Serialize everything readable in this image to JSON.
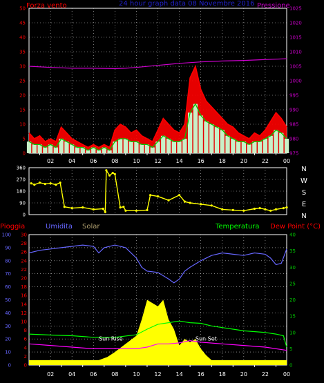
{
  "header": {
    "left_label": "Forza vento",
    "title": "24 hour graph data  08 Novembre 2016",
    "right_label": "Pressione"
  },
  "colors": {
    "background": "#000000",
    "wind_gust": "#ff0000",
    "wind_avg": "#00cc00",
    "wind_speed": "#ffffff",
    "wind_fill": "#c8f0c8",
    "pressure": "#cc00cc",
    "direction": "#ffff00",
    "humidity": "#6666ff",
    "temperature": "#00ff00",
    "dewpoint": "#ff00ff",
    "solar": "#ffff00",
    "rain": "#ff0000",
    "title": "#2222cc",
    "axis_left": "#ff0000",
    "axis_right": "#cc00cc",
    "axis_dir": "#ffffff",
    "axis_hum": "#6666ff",
    "axis_temp": "#00cc00",
    "axis_rain": "#ff0000"
  },
  "chart_data": [
    {
      "type": "line",
      "title": "24 hour graph data  08 Novembre 2016",
      "left_axis": "Forza vento",
      "right_axis": "Pressione",
      "x_ticks": [
        "02",
        "04",
        "06",
        "08",
        "10",
        "12",
        "14",
        "16",
        "18",
        "20",
        "22",
        "00"
      ],
      "x_range": [
        0,
        24
      ],
      "y_left_ticks": [
        0,
        5,
        10,
        15,
        20,
        25,
        30,
        35,
        40,
        45,
        50
      ],
      "y_left_range": [
        0,
        50
      ],
      "y_right_ticks": [
        975,
        980,
        985,
        990,
        995,
        1000,
        1005,
        1010,
        1015,
        1020,
        1025
      ],
      "y_right_range": [
        975,
        1025
      ],
      "grid": true,
      "series": [
        {
          "axis": "left",
          "x": [
            0,
            0.5,
            1,
            1.5,
            2,
            2.5,
            3,
            3.5,
            4,
            4.5,
            5,
            5.5,
            6,
            6.5,
            7,
            7.5,
            8,
            8.5,
            9,
            9.5,
            10,
            10.5,
            11,
            11.5,
            12,
            12.5,
            13,
            13.5,
            14,
            14.5,
            15,
            15.5,
            16,
            16.5,
            17,
            17.5,
            18,
            18.5,
            19,
            19.5,
            20,
            20.5,
            21,
            21.5,
            22,
            22.5,
            23,
            23.5,
            24
          ],
          "values": [
            7,
            5,
            6,
            4,
            5,
            4,
            9,
            7,
            5,
            4,
            3,
            2,
            3,
            2,
            3,
            2,
            8,
            10,
            9,
            7,
            8,
            6,
            5,
            4,
            8,
            12,
            10,
            8,
            7,
            10,
            26,
            30,
            22,
            18,
            16,
            14,
            12,
            10,
            9,
            7,
            6,
            5,
            7,
            6,
            8,
            11,
            14,
            12,
            9
          ]
        },
        {
          "axis": "left",
          "x": [
            0,
            0.5,
            1,
            1.5,
            2,
            2.5,
            3,
            3.5,
            4,
            4.5,
            5,
            5.5,
            6,
            6.5,
            7,
            7.5,
            8,
            8.5,
            9,
            9.5,
            10,
            10.5,
            11,
            11.5,
            12,
            12.5,
            13,
            13.5,
            14,
            14.5,
            15,
            15.5,
            16,
            16.5,
            17,
            17.5,
            18,
            18.5,
            19,
            19.5,
            20,
            20.5,
            21,
            21.5,
            22,
            22.5,
            23,
            23.5,
            24
          ],
          "values": [
            4,
            3,
            3,
            2,
            3,
            2,
            5,
            4,
            3,
            2,
            2,
            1,
            2,
            1,
            2,
            1,
            4,
            5,
            5,
            4,
            4,
            3,
            3,
            2,
            4,
            6,
            5,
            4,
            4,
            5,
            14,
            17,
            13,
            11,
            10,
            9,
            8,
            6,
            5,
            4,
            4,
            3,
            4,
            4,
            5,
            6,
            8,
            7,
            5
          ]
        },
        {
          "axis": "right",
          "x": [
            0,
            2,
            4,
            6,
            8,
            9,
            10,
            12,
            14,
            16,
            18,
            20,
            22,
            24
          ],
          "values": [
            1005.0,
            1004.6,
            1004.3,
            1004.3,
            1004.2,
            1004.3,
            1004.6,
            1005.3,
            1006.0,
            1006.5,
            1006.8,
            1007.0,
            1007.3,
            1007.6
          ]
        }
      ]
    },
    {
      "type": "scatter",
      "right_axis_labels": [
        "N",
        "W",
        "S",
        "E",
        "N"
      ],
      "x_range": [
        0,
        24
      ],
      "y_ticks": [
        0,
        90,
        180,
        270,
        360
      ],
      "y_range": [
        0,
        360
      ],
      "series": [
        {
          "x": [
            0.2,
            0.5,
            1,
            1.5,
            2,
            2.5,
            2.9,
            3.3,
            4,
            5,
            6,
            6.9,
            7.1,
            7.2,
            7.5,
            7.8,
            8,
            8.5,
            8.8,
            9,
            10,
            11,
            11.3,
            12,
            13,
            14,
            14.5,
            15,
            16,
            17,
            18,
            19,
            20,
            21,
            21.5,
            22,
            22.5,
            23,
            23.7,
            24
          ],
          "values": [
            240,
            230,
            245,
            235,
            240,
            230,
            245,
            60,
            50,
            55,
            40,
            45,
            20,
            340,
            300,
            320,
            310,
            55,
            60,
            30,
            30,
            35,
            150,
            140,
            110,
            150,
            100,
            90,
            80,
            70,
            40,
            35,
            30,
            45,
            50,
            40,
            30,
            40,
            50,
            55
          ]
        }
      ]
    },
    {
      "type": "line",
      "legend": [
        "Pioggia",
        "Umidita",
        "Solar",
        "Temperatura",
        "Dew Point (°C)"
      ],
      "x_ticks": [
        "02",
        "04",
        "06",
        "08",
        "10",
        "12",
        "14",
        "16",
        "18",
        "20",
        "22",
        "00"
      ],
      "x_range": [
        0,
        24
      ],
      "y_hum_ticks": [
        0,
        10,
        20,
        30,
        40,
        50,
        60,
        70,
        80,
        90,
        100
      ],
      "y_hum_range": [
        0,
        100
      ],
      "y_rain_ticks": [
        0,
        2,
        4,
        6,
        8,
        10,
        12,
        14,
        16,
        18,
        20,
        22,
        24,
        26,
        28,
        30
      ],
      "y_rain_range": [
        0,
        30
      ],
      "y_temp_ticks": [
        0,
        5,
        10,
        15,
        20,
        25,
        30,
        35,
        40
      ],
      "y_temp_range": [
        0,
        40
      ],
      "annotations": [
        "Sun Rise",
        "Sun Set"
      ],
      "grid": true,
      "series": [
        {
          "name": "Umidita",
          "x": [
            0,
            1,
            2,
            3,
            4,
            5,
            6,
            6.5,
            7,
            8,
            9,
            10,
            10.5,
            11,
            12,
            13,
            13.5,
            14,
            14.5,
            15,
            16,
            17,
            18,
            19,
            20,
            21,
            22,
            22.5,
            23,
            23.5,
            24
          ],
          "values": [
            86,
            88,
            89,
            90,
            91,
            92,
            91,
            86,
            90,
            92,
            90,
            82,
            75,
            72,
            71,
            66,
            63,
            66,
            72,
            75,
            80,
            84,
            86,
            85,
            84,
            86,
            85,
            82,
            77,
            78,
            89
          ]
        },
        {
          "name": "Temperatura",
          "x": [
            0,
            2,
            4,
            6,
            8,
            10,
            11,
            12,
            13,
            14,
            15,
            16,
            17,
            18,
            19,
            20,
            22,
            23,
            23.7,
            24
          ],
          "values": [
            9.5,
            9.2,
            9.0,
            8.5,
            8.5,
            9.3,
            11.0,
            12.5,
            13.0,
            13.5,
            13.0,
            12.8,
            12.0,
            11.5,
            11.0,
            10.5,
            10.0,
            9.5,
            9.0,
            5.5
          ]
        },
        {
          "name": "Dew Point (°C)",
          "x": [
            0,
            2,
            4,
            6,
            8,
            10,
            11,
            12,
            13,
            14,
            15,
            16,
            18,
            20,
            22,
            24
          ],
          "values": [
            6.5,
            6.0,
            5.5,
            5.0,
            5.0,
            5.0,
            5.5,
            6.5,
            6.5,
            6.8,
            7.5,
            7.0,
            6.5,
            6.0,
            5.5,
            4.5
          ]
        },
        {
          "name": "Solar",
          "x": [
            0,
            5,
            6.5,
            7.3,
            8,
            9,
            10,
            10.5,
            11,
            11.5,
            12,
            12.5,
            13,
            13.5,
            14,
            14.5,
            15,
            15.5,
            16,
            16.5,
            17,
            24
          ],
          "values": [
            1.5,
            1.5,
            1.5,
            2.5,
            4,
            6.5,
            9,
            14,
            20,
            19,
            18,
            20,
            14,
            11,
            6,
            8,
            7,
            8,
            5,
            3,
            1.5,
            1.5
          ]
        }
      ]
    }
  ]
}
